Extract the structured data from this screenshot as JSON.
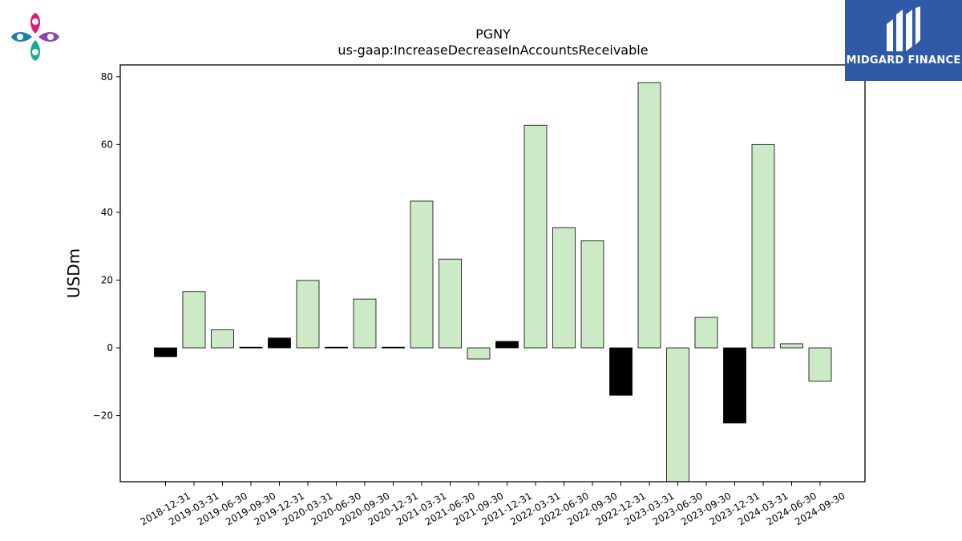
{
  "brand": {
    "name": "MIDGARD FINANCE",
    "box_color": "#2e5aa8",
    "mark_icon": "midgard-m-icon",
    "left_logo_icon": "four-petal-logo-icon",
    "left_logo_colors": [
      "#e2197a",
      "#8e44ad",
      "#1aaa8c",
      "#1d7fa8"
    ]
  },
  "chart_data": {
    "type": "bar",
    "title": "PGNY",
    "subtitle": "us-gaap:IncreaseDecreaseInAccountsReceivable",
    "xlabel": "",
    "ylabel": "USDm",
    "ylim": [
      -39.5,
      83.5
    ],
    "yticks": [
      -20,
      0,
      20,
      40,
      60,
      80
    ],
    "ytick_labels": [
      "−20",
      "0",
      "20",
      "40",
      "60",
      "80"
    ],
    "grid": false,
    "legend": "none",
    "colors": {
      "fill_light": "#cdeac6",
      "fill_dark": "#000000",
      "edge": "#000000"
    },
    "categories": [
      "2018-12-31",
      "2019-03-31",
      "2019-06-30",
      "2019-09-30",
      "2019-12-31",
      "2020-03-31",
      "2020-06-30",
      "2020-09-30",
      "2020-12-31",
      "2021-03-31",
      "2021-06-30",
      "2021-09-30",
      "2021-12-31",
      "2022-03-31",
      "2022-06-30",
      "2022-09-30",
      "2022-12-31",
      "2023-03-31",
      "2023-06-30",
      "2023-09-30",
      "2023-12-31",
      "2024-03-31",
      "2024-06-30",
      "2024-09-30"
    ],
    "values": [
      -2.6,
      16.6,
      5.3,
      0.2,
      2.9,
      19.9,
      0.2,
      14.4,
      0.2,
      43.3,
      26.2,
      -3.3,
      1.9,
      65.7,
      35.5,
      31.6,
      -14.0,
      78.3,
      -39.5,
      9.0,
      -22.2,
      60.0,
      1.2,
      -9.8
    ],
    "dark": [
      true,
      false,
      false,
      true,
      true,
      false,
      true,
      false,
      true,
      false,
      false,
      false,
      true,
      false,
      false,
      false,
      true,
      false,
      false,
      false,
      true,
      false,
      false,
      false
    ]
  }
}
